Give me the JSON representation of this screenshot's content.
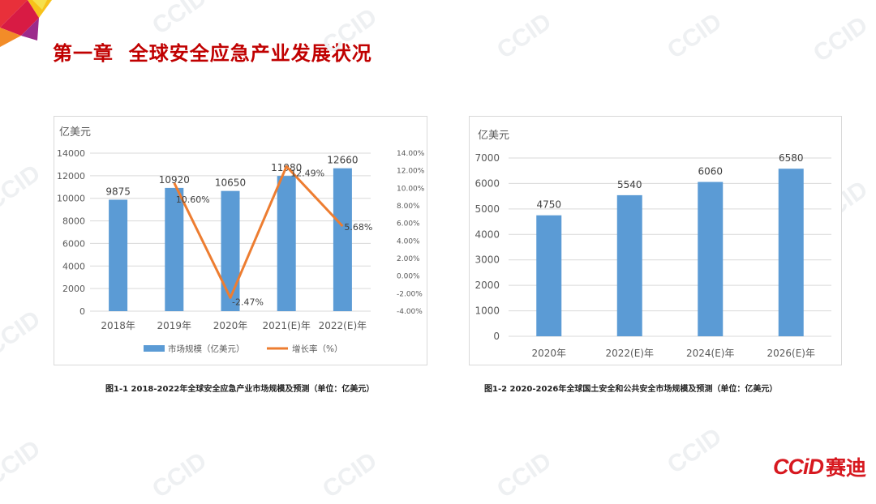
{
  "title": "第一章  全球安全应急产业发展状况",
  "watermark": "CCID",
  "logo": {
    "en": "CCiD",
    "cn": "赛迪",
    "color": "#d71920"
  },
  "colors": {
    "title": "#c00000",
    "bar": "#5b9bd5",
    "line": "#ed7d31"
  },
  "captions": {
    "chart1": "图1-1  2018-2022年全球安全应急产业市场规模及预测（单位：亿美元）",
    "chart2": "图1-2  2020-2026年全球国土安全和公共安全市场规模及预测（单位：亿美元）"
  },
  "chart_data": [
    {
      "type": "bar",
      "categories": [
        "2018年",
        "2019年",
        "2020年",
        "2021(E)年",
        "2022(E)年"
      ],
      "series": [
        {
          "name": "市场规模（亿美元）",
          "type": "bar",
          "axis": "left",
          "values": [
            9875,
            10920,
            10650,
            11980,
            12660
          ]
        },
        {
          "name": "增长率（%）",
          "type": "line",
          "axis": "right",
          "values": [
            null,
            10.6,
            -2.47,
            12.49,
            5.68
          ]
        }
      ],
      "value_labels": [
        "9875",
        "10920",
        "10650",
        "11980",
        "12660"
      ],
      "line_labels": [
        "",
        "10.60%",
        "-2.47%",
        "12.49%",
        "5.68%"
      ],
      "ylabel": "亿美元",
      "ylim": [
        0,
        14000
      ],
      "yticks": [
        "0",
        "2000",
        "4000",
        "6000",
        "8000",
        "10000",
        "12000",
        "14000"
      ],
      "y2lim": [
        -4,
        14
      ],
      "y2ticks": [
        "-4.00%",
        "-2.00%",
        "0.00%",
        "2.00%",
        "4.00%",
        "6.00%",
        "8.00%",
        "10.00%",
        "12.00%",
        "14.00%"
      ],
      "grid": true,
      "legend": "bottom"
    },
    {
      "type": "bar",
      "categories": [
        "2020年",
        "2022(E)年",
        "2024(E)年",
        "2026(E)年"
      ],
      "values": [
        4750,
        5540,
        6060,
        6580
      ],
      "value_labels": [
        "4750",
        "5540",
        "6060",
        "6580"
      ],
      "ylabel": "亿美元",
      "ylim": [
        0,
        7000
      ],
      "yticks": [
        "0",
        "1000",
        "2000",
        "3000",
        "4000",
        "5000",
        "6000",
        "7000"
      ],
      "grid": true,
      "legend": "none"
    }
  ]
}
